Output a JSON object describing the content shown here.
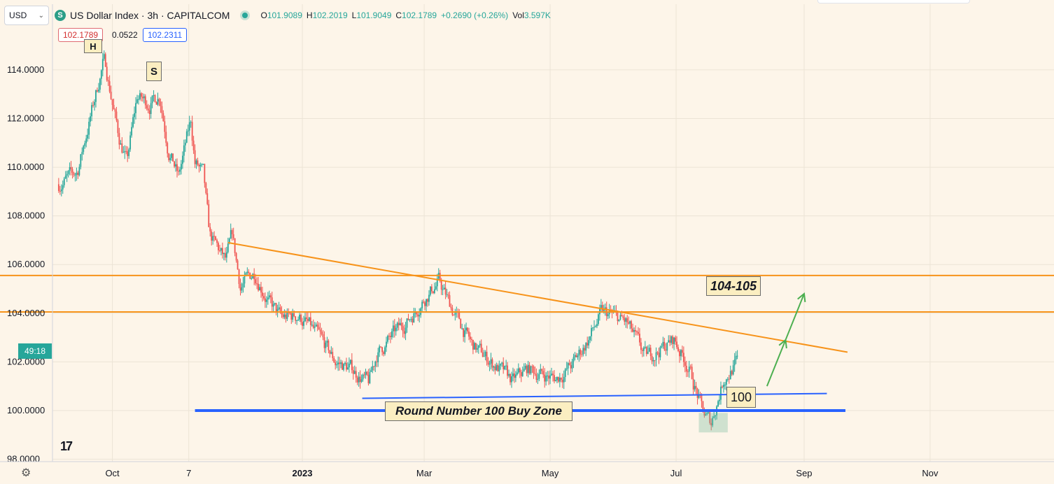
{
  "toolbar": {
    "currency": "USD",
    "symbol_icon": "S",
    "title": "US Dollar Index · 3h · CAPITALCOM",
    "ohlc": [
      {
        "k": "O",
        "v": "101.9089"
      },
      {
        "k": "H",
        "v": "102.2019"
      },
      {
        "k": "L",
        "v": "101.9049"
      },
      {
        "k": "C",
        "v": "102.1789"
      },
      {
        "k": "",
        "v": "+0.2690 (+0.26%)"
      },
      {
        "k": "Vol",
        "v": "3.597K"
      }
    ],
    "bid": "102.1789",
    "spread": "0.0522",
    "ask": "102.2311",
    "countdown": "49:18",
    "logo": "17"
  },
  "colors": {
    "background": "#fdf5e9",
    "candle_up": "#26a69a",
    "candle_down": "#ef5350",
    "orange_line": "#f7931a",
    "blue_line": "#2962ff",
    "annotation_fill": "#fbeec1",
    "green_arrow": "#4caf50"
  },
  "annotations": {
    "target": "104-105",
    "level_100": "100",
    "buy_zone": "Round Number 100 Buy Zone",
    "marker_s": "S",
    "marker_h": "H"
  },
  "chart_data": {
    "type": "candlestick",
    "title": "US Dollar Index · 3h · CAPITALCOM",
    "y_ticks": [
      "114.0000",
      "112.0000",
      "110.0000",
      "108.0000",
      "106.0000",
      "104.0000",
      "102.0000",
      "100.0000",
      "98.0000"
    ],
    "y_tick_values": [
      114,
      112,
      110,
      108,
      106,
      104,
      102,
      100,
      98
    ],
    "ylim": [
      97.9,
      116.7
    ],
    "x_ticks": [
      "Oct",
      "7",
      "2023",
      "Mar",
      "May",
      "Jul",
      "Sep",
      "Nov"
    ],
    "x_tick_dates": [
      "2022-10-01",
      "2022-11-07",
      "2023-01-01",
      "2023-03-01",
      "2023-05-01",
      "2023-07-01",
      "2023-09-01",
      "2023-11-01"
    ],
    "xlim": [
      "2022-09-02",
      "2023-12-31"
    ],
    "data_range": [
      "2022-09-05",
      "2023-07-31"
    ],
    "anchors": [
      [
        "2022-09-05",
        109.3
      ],
      [
        "2022-09-14",
        109.8
      ],
      [
        "2022-09-23",
        113.0
      ],
      [
        "2022-09-27",
        114.5
      ],
      [
        "2022-10-04",
        111.3
      ],
      [
        "2022-10-08",
        110.2
      ],
      [
        "2022-10-13",
        112.9
      ],
      [
        "2022-10-19",
        112.6
      ],
      [
        "2022-10-24",
        113.0
      ],
      [
        "2022-10-28",
        110.8
      ],
      [
        "2022-11-02",
        109.6
      ],
      [
        "2022-11-08",
        111.9
      ],
      [
        "2022-11-10",
        110.2
      ],
      [
        "2022-11-14",
        109.7
      ],
      [
        "2022-11-17",
        107.2
      ],
      [
        "2022-11-25",
        106.1
      ],
      [
        "2022-11-28",
        107.2
      ],
      [
        "2022-12-02",
        105.1
      ],
      [
        "2022-12-09",
        105.7
      ],
      [
        "2022-12-16",
        104.4
      ],
      [
        "2022-12-22",
        103.8
      ],
      [
        "2022-12-30",
        103.9
      ],
      [
        "2023-01-04",
        103.5
      ],
      [
        "2023-01-10",
        102.9
      ],
      [
        "2023-01-17",
        102.0
      ],
      [
        "2023-01-25",
        101.7
      ],
      [
        "2023-02-02",
        101.1
      ],
      [
        "2023-02-06",
        102.3
      ],
      [
        "2023-02-15",
        103.2
      ],
      [
        "2023-02-22",
        103.8
      ],
      [
        "2023-03-01",
        104.6
      ],
      [
        "2023-03-08",
        105.3
      ],
      [
        "2023-03-15",
        104.1
      ],
      [
        "2023-03-24",
        102.7
      ],
      [
        "2023-04-05",
        101.8
      ],
      [
        "2023-04-13",
        101.2
      ],
      [
        "2023-04-20",
        101.7
      ],
      [
        "2023-04-27",
        101.5
      ],
      [
        "2023-05-04",
        101.3
      ],
      [
        "2023-05-12",
        101.9
      ],
      [
        "2023-05-20",
        103.0
      ],
      [
        "2023-05-26",
        104.0
      ],
      [
        "2023-05-31",
        103.9
      ],
      [
        "2023-06-07",
        103.6
      ],
      [
        "2023-06-16",
        102.2
      ],
      [
        "2023-06-23",
        102.5
      ],
      [
        "2023-06-30",
        102.9
      ],
      [
        "2023-07-07",
        101.8
      ],
      [
        "2023-07-14",
        99.9
      ],
      [
        "2023-07-18",
        99.5
      ],
      [
        "2023-07-24",
        101.3
      ],
      [
        "2023-07-31",
        102.0
      ]
    ],
    "price_range_in_view": {
      "low": 99.1,
      "high": 114.8
    },
    "lines": [
      {
        "kind": "descending-trendline",
        "color": "orange",
        "from": [
          "2022-11-26",
          106.9
        ],
        "to": [
          "2023-09-22",
          102.4
        ]
      },
      {
        "kind": "horizontal-resistance",
        "color": "orange",
        "y": 105.55
      },
      {
        "kind": "horizontal-resistance",
        "color": "orange",
        "y": 104.05
      },
      {
        "kind": "support-trendline",
        "color": "blue",
        "from": [
          "2023-01-30",
          100.5
        ],
        "to": [
          "2023-09-12",
          100.7
        ]
      },
      {
        "kind": "horizontal-support",
        "color": "blue",
        "y": 100.0,
        "from": "2022-11-10",
        "to": "2023-09-21"
      }
    ],
    "projection_arrows": [
      {
        "from": [
          "2023-08-14",
          101.0
        ],
        "to": [
          "2023-08-23",
          102.9
        ]
      },
      {
        "from": [
          "2023-08-23",
          102.9
        ],
        "to": [
          "2023-09-01",
          104.8
        ]
      }
    ],
    "highlight_zone": {
      "from": "2023-07-12",
      "to": "2023-07-26",
      "y": [
        99.1,
        99.9
      ]
    },
    "grid": true,
    "y_axis": "left"
  }
}
